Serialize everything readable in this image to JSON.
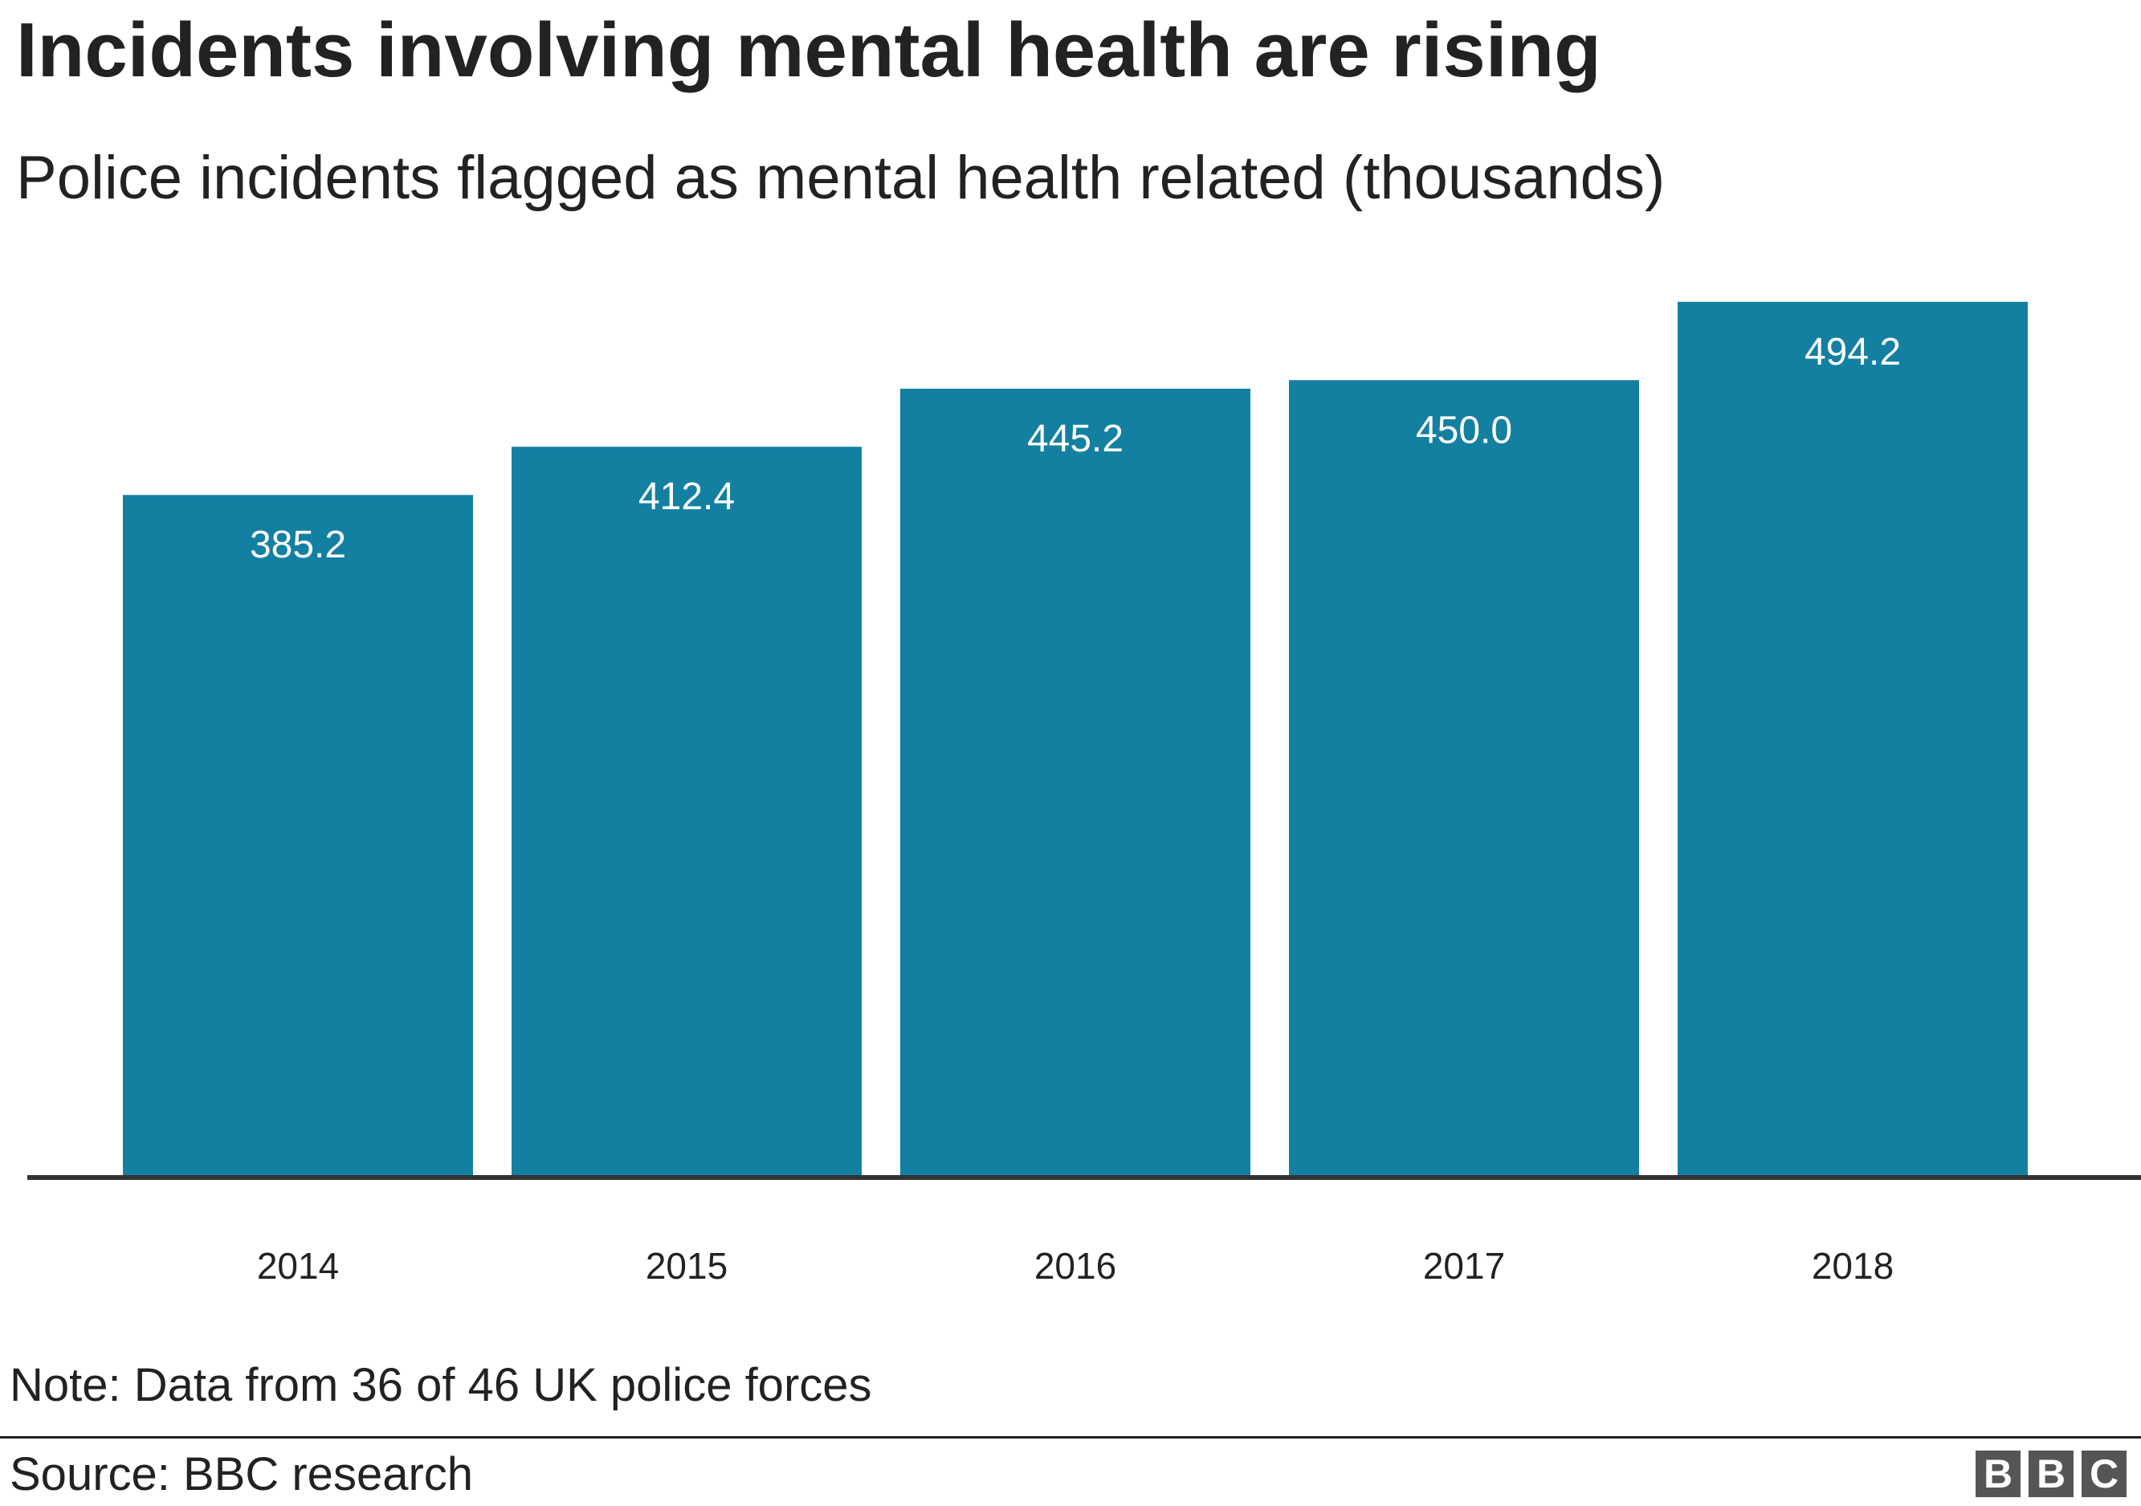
{
  "chart_data": {
    "type": "bar",
    "title": "Incidents involving mental health are rising",
    "subtitle": "Police incidents flagged as mental health related (thousands)",
    "categories": [
      "2014",
      "2015",
      "2016",
      "2017",
      "2018"
    ],
    "values": [
      385.2,
      412.4,
      445.2,
      450.0,
      494.2
    ],
    "value_labels": [
      "385.2",
      "412.4",
      "445.2",
      "450.0",
      "494.2"
    ],
    "ylim": [
      0,
      500
    ],
    "grid": false,
    "bar_color": "#1380a1",
    "axis_color": "#333333"
  },
  "note": "Note: Data from 36 of 46 UK police forces",
  "source": "Source: BBC research",
  "logo": [
    "B",
    "B",
    "C"
  ]
}
